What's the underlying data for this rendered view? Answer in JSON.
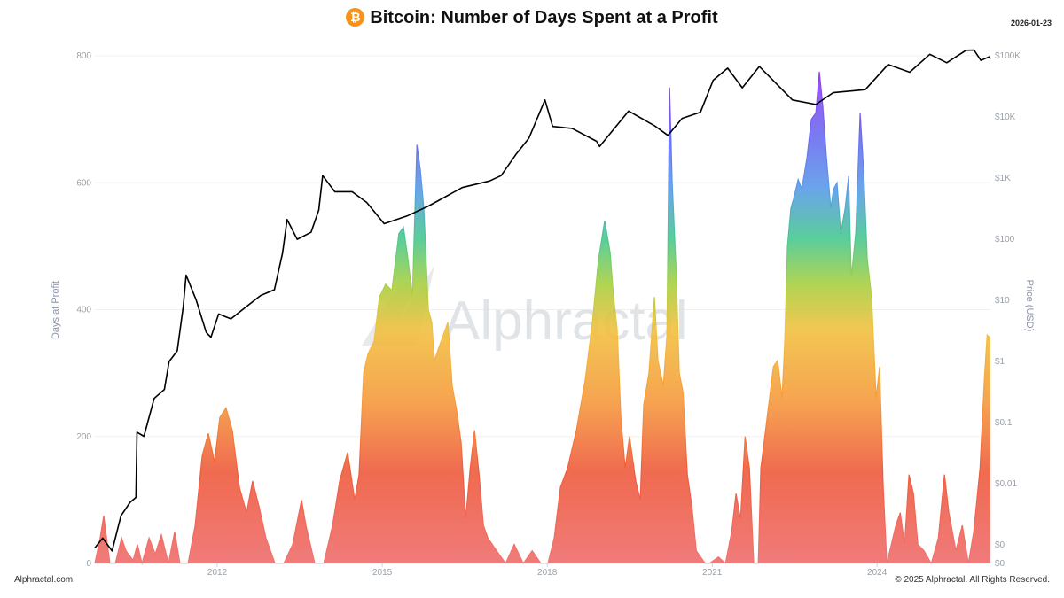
{
  "header": {
    "title": "Bitcoin: Number of Days Spent at a Profit",
    "date": "2026-01-23",
    "icon": "bitcoin-icon"
  },
  "footer": {
    "left": "Alphractal.com",
    "right": "© 2025 Alphractal. All Rights Reserved."
  },
  "watermark": "Alphractal",
  "colors": {
    "price_line": "#000000",
    "bitcoin": "#f7931a",
    "gradient": [
      "#f07474",
      "#ee5a3c",
      "#f59a3c",
      "#f2c040",
      "#a8d040",
      "#48c890",
      "#5a9ae8",
      "#6a6cf0",
      "#9040f0"
    ]
  },
  "chart_data": {
    "type": "area",
    "title": "Bitcoin: Number of Days Spent at a Profit",
    "xlabel": "",
    "ylabel": "Days at Profit",
    "ylabel_right": "Price (USD)",
    "xlim": [
      "2009-10-10",
      "2026-01-23"
    ],
    "ylim": [
      0,
      800
    ],
    "ylim_right": [
      0.0005,
      100000
    ],
    "y_right_scale": "log",
    "grid": true,
    "x_ticks": [
      "2012",
      "2015",
      "2018",
      "2021",
      "2024"
    ],
    "y_ticks": [
      "0",
      "200",
      "400",
      "600",
      "800"
    ],
    "y_right_ticks": [
      {
        "value": 100000,
        "label": "$100K"
      },
      {
        "value": 10000,
        "label": "$10K"
      },
      {
        "value": 1000,
        "label": "$1K"
      },
      {
        "value": 100,
        "label": "$100"
      },
      {
        "value": 10,
        "label": "$10"
      },
      {
        "value": 1,
        "label": "$1"
      },
      {
        "value": 0.1,
        "label": "$0.1"
      },
      {
        "value": 0.01,
        "label": "$0.01"
      },
      {
        "value": 0.001,
        "label": "$0"
      },
      {
        "value": 0.0005,
        "label": "$0"
      }
    ],
    "series": [
      {
        "name": "Days at Profit",
        "type": "area",
        "axis": "left",
        "points": [
          [
            "2009-10-10",
            0
          ],
          [
            "2009-11-14",
            40
          ],
          [
            "2009-12-08",
            75
          ],
          [
            "2010-01-01",
            30
          ],
          [
            "2010-01-18",
            0
          ],
          [
            "2010-02-23",
            0
          ],
          [
            "2010-04-05",
            40
          ],
          [
            "2010-05-05",
            20
          ],
          [
            "2010-06-21",
            5
          ],
          [
            "2010-07-20",
            30
          ],
          [
            "2010-08-19",
            0
          ],
          [
            "2010-10-05",
            40
          ],
          [
            "2010-11-15",
            15
          ],
          [
            "2010-12-26",
            45
          ],
          [
            "2011-02-11",
            0
          ],
          [
            "2011-03-24",
            50
          ],
          [
            "2011-04-28",
            0
          ],
          [
            "2011-06-21",
            0
          ],
          [
            "2011-08-07",
            60
          ],
          [
            "2011-09-23",
            170
          ],
          [
            "2011-11-03",
            205
          ],
          [
            "2011-12-14",
            160
          ],
          [
            "2012-01-18",
            230
          ],
          [
            "2012-02-28",
            245
          ],
          [
            "2012-04-10",
            210
          ],
          [
            "2012-05-27",
            120
          ],
          [
            "2012-07-14",
            80
          ],
          [
            "2012-08-23",
            130
          ],
          [
            "2012-10-04",
            90
          ],
          [
            "2012-11-20",
            40
          ],
          [
            "2013-01-18",
            0
          ],
          [
            "2013-03-18",
            0
          ],
          [
            "2013-05-16",
            30
          ],
          [
            "2013-07-14",
            100
          ],
          [
            "2013-08-12",
            60
          ],
          [
            "2013-10-10",
            0
          ],
          [
            "2013-12-08",
            0
          ],
          [
            "2014-02-05",
            60
          ],
          [
            "2014-03-24",
            130
          ],
          [
            "2014-05-16",
            175
          ],
          [
            "2014-07-02",
            100
          ],
          [
            "2014-07-31",
            140
          ],
          [
            "2014-08-30",
            300
          ],
          [
            "2014-09-28",
            330
          ],
          [
            "2014-11-08",
            350
          ],
          [
            "2014-12-14",
            420
          ],
          [
            "2015-01-24",
            440
          ],
          [
            "2015-03-06",
            430
          ],
          [
            "2015-04-22",
            520
          ],
          [
            "2015-05-22",
            530
          ],
          [
            "2015-06-21",
            480
          ],
          [
            "2015-07-20",
            420
          ],
          [
            "2015-08-19",
            660
          ],
          [
            "2015-09-11",
            620
          ],
          [
            "2015-10-04",
            560
          ],
          [
            "2015-11-03",
            400
          ],
          [
            "2015-11-26",
            380
          ],
          [
            "2015-12-14",
            320
          ],
          [
            "2016-01-12",
            340
          ],
          [
            "2016-02-11",
            360
          ],
          [
            "2016-03-12",
            380
          ],
          [
            "2016-04-10",
            280
          ],
          [
            "2016-05-10",
            240
          ],
          [
            "2016-06-08",
            190
          ],
          [
            "2016-07-08",
            70
          ],
          [
            "2016-08-07",
            150
          ],
          [
            "2016-09-05",
            210
          ],
          [
            "2016-10-05",
            140
          ],
          [
            "2016-11-03",
            60
          ],
          [
            "2016-12-03",
            40
          ],
          [
            "2017-01-30",
            20
          ],
          [
            "2017-03-30",
            0
          ],
          [
            "2017-05-27",
            30
          ],
          [
            "2017-07-26",
            0
          ],
          [
            "2017-09-23",
            20
          ],
          [
            "2017-11-20",
            0
          ],
          [
            "2018-01-06",
            0
          ],
          [
            "2018-02-16",
            40
          ],
          [
            "2018-03-30",
            120
          ],
          [
            "2018-05-16",
            150
          ],
          [
            "2018-07-14",
            210
          ],
          [
            "2018-09-11",
            290
          ],
          [
            "2018-10-28",
            380
          ],
          [
            "2018-12-08",
            480
          ],
          [
            "2019-01-18",
            540
          ],
          [
            "2019-02-23",
            490
          ],
          [
            "2019-03-18",
            420
          ],
          [
            "2019-04-10",
            370
          ],
          [
            "2019-05-05",
            230
          ],
          [
            "2019-06-03",
            150
          ],
          [
            "2019-07-02",
            200
          ],
          [
            "2019-08-12",
            130
          ],
          [
            "2019-09-11",
            100
          ],
          [
            "2019-10-04",
            250
          ],
          [
            "2019-11-08",
            300
          ],
          [
            "2019-12-14",
            420
          ],
          [
            "2020-01-06",
            320
          ],
          [
            "2020-02-11",
            280
          ],
          [
            "2020-03-06",
            360
          ],
          [
            "2020-03-24",
            750
          ],
          [
            "2020-04-10",
            600
          ],
          [
            "2020-05-05",
            470
          ],
          [
            "2020-05-27",
            300
          ],
          [
            "2020-06-21",
            270
          ],
          [
            "2020-07-20",
            140
          ],
          [
            "2020-08-19",
            90
          ],
          [
            "2020-09-17",
            20
          ],
          [
            "2020-11-15",
            0
          ],
          [
            "2020-12-14",
            0
          ],
          [
            "2021-02-11",
            10
          ],
          [
            "2021-03-30",
            0
          ],
          [
            "2021-05-10",
            50
          ],
          [
            "2021-06-08",
            110
          ],
          [
            "2021-07-08",
            70
          ],
          [
            "2021-08-07",
            200
          ],
          [
            "2021-09-05",
            150
          ],
          [
            "2021-10-04",
            0
          ],
          [
            "2021-11-03",
            0
          ],
          [
            "2021-11-20",
            150
          ],
          [
            "2022-01-01",
            230
          ],
          [
            "2022-02-11",
            310
          ],
          [
            "2022-03-12",
            320
          ],
          [
            "2022-04-10",
            260
          ],
          [
            "2022-04-28",
            350
          ],
          [
            "2022-05-16",
            500
          ],
          [
            "2022-06-08",
            560
          ],
          [
            "2022-06-26",
            575
          ],
          [
            "2022-07-26",
            605
          ],
          [
            "2022-08-19",
            590
          ],
          [
            "2022-09-23",
            640
          ],
          [
            "2022-10-22",
            700
          ],
          [
            "2022-11-20",
            710
          ],
          [
            "2022-12-14",
            775
          ],
          [
            "2023-01-06",
            720
          ],
          [
            "2023-01-30",
            640
          ],
          [
            "2023-02-28",
            560
          ],
          [
            "2023-03-18",
            590
          ],
          [
            "2023-04-10",
            600
          ],
          [
            "2023-05-05",
            520
          ],
          [
            "2023-06-03",
            560
          ],
          [
            "2023-06-26",
            610
          ],
          [
            "2023-07-14",
            450
          ],
          [
            "2023-08-12",
            520
          ],
          [
            "2023-09-11",
            710
          ],
          [
            "2023-10-04",
            620
          ],
          [
            "2023-10-28",
            480
          ],
          [
            "2023-11-26",
            420
          ],
          [
            "2023-12-26",
            260
          ],
          [
            "2024-01-18",
            310
          ],
          [
            "2024-02-11",
            120
          ],
          [
            "2024-03-06",
            0
          ],
          [
            "2024-05-05",
            60
          ],
          [
            "2024-06-03",
            80
          ],
          [
            "2024-07-02",
            30
          ],
          [
            "2024-07-31",
            140
          ],
          [
            "2024-08-30",
            110
          ],
          [
            "2024-09-28",
            30
          ],
          [
            "2024-11-08",
            20
          ],
          [
            "2024-12-26",
            0
          ],
          [
            "2025-02-11",
            40
          ],
          [
            "2025-03-24",
            140
          ],
          [
            "2025-04-22",
            80
          ],
          [
            "2025-06-08",
            20
          ],
          [
            "2025-07-20",
            60
          ],
          [
            "2025-08-30",
            0
          ],
          [
            "2025-10-04",
            50
          ],
          [
            "2025-11-15",
            150
          ],
          [
            "2025-12-14",
            290
          ],
          [
            "2026-01-01",
            360
          ],
          [
            "2026-01-23",
            355
          ]
        ]
      },
      {
        "name": "Price (USD)",
        "type": "line",
        "axis": "right",
        "points": [
          [
            "2009-10-10",
            0.0009
          ],
          [
            "2009-12-01",
            0.0013
          ],
          [
            "2010-02-01",
            0.0008
          ],
          [
            "2010-04-01",
            0.003
          ],
          [
            "2010-06-01",
            0.005
          ],
          [
            "2010-07-10",
            0.006
          ],
          [
            "2010-07-17",
            0.07
          ],
          [
            "2010-09-01",
            0.06
          ],
          [
            "2010-11-08",
            0.25
          ],
          [
            "2011-01-15",
            0.35
          ],
          [
            "2011-02-15",
            1.0
          ],
          [
            "2011-04-10",
            1.5
          ],
          [
            "2011-05-20",
            8
          ],
          [
            "2011-06-08",
            26
          ],
          [
            "2011-08-15",
            10
          ],
          [
            "2011-10-20",
            3
          ],
          [
            "2011-11-20",
            2.5
          ],
          [
            "2012-01-10",
            6
          ],
          [
            "2012-04-01",
            5
          ],
          [
            "2012-07-15",
            8
          ],
          [
            "2012-10-15",
            12
          ],
          [
            "2013-01-15",
            15
          ],
          [
            "2013-03-10",
            60
          ],
          [
            "2013-04-09",
            210
          ],
          [
            "2013-06-15",
            100
          ],
          [
            "2013-09-15",
            130
          ],
          [
            "2013-11-05",
            300
          ],
          [
            "2013-12-01",
            1100
          ],
          [
            "2014-02-20",
            600
          ],
          [
            "2014-06-15",
            600
          ],
          [
            "2014-09-20",
            400
          ],
          [
            "2015-01-14",
            180
          ],
          [
            "2015-06-15",
            240
          ],
          [
            "2015-11-05",
            350
          ],
          [
            "2016-06-15",
            700
          ],
          [
            "2016-12-15",
            900
          ],
          [
            "2017-03-01",
            1100
          ],
          [
            "2017-06-10",
            2500
          ],
          [
            "2017-09-01",
            4500
          ],
          [
            "2017-12-17",
            19000
          ],
          [
            "2018-02-06",
            7000
          ],
          [
            "2018-06-15",
            6500
          ],
          [
            "2018-11-25",
            4000
          ],
          [
            "2018-12-15",
            3300
          ],
          [
            "2019-06-26",
            12500
          ],
          [
            "2019-12-15",
            7200
          ],
          [
            "2020-03-13",
            5000
          ],
          [
            "2020-06-15",
            9500
          ],
          [
            "2020-10-15",
            12000
          ],
          [
            "2021-01-08",
            40000
          ],
          [
            "2021-04-14",
            63000
          ],
          [
            "2021-07-20",
            30000
          ],
          [
            "2021-11-10",
            67000
          ],
          [
            "2022-06-18",
            19000
          ],
          [
            "2022-11-21",
            16000
          ],
          [
            "2023-03-15",
            25000
          ],
          [
            "2023-10-15",
            28000
          ],
          [
            "2024-03-14",
            72000
          ],
          [
            "2024-08-05",
            54000
          ],
          [
            "2024-12-17",
            106000
          ],
          [
            "2025-04-08",
            77000
          ],
          [
            "2025-08-14",
            123000
          ],
          [
            "2025-10-06",
            124000
          ],
          [
            "2025-11-21",
            84000
          ],
          [
            "2026-01-14",
            96000
          ],
          [
            "2026-01-23",
            89000
          ]
        ]
      }
    ]
  }
}
